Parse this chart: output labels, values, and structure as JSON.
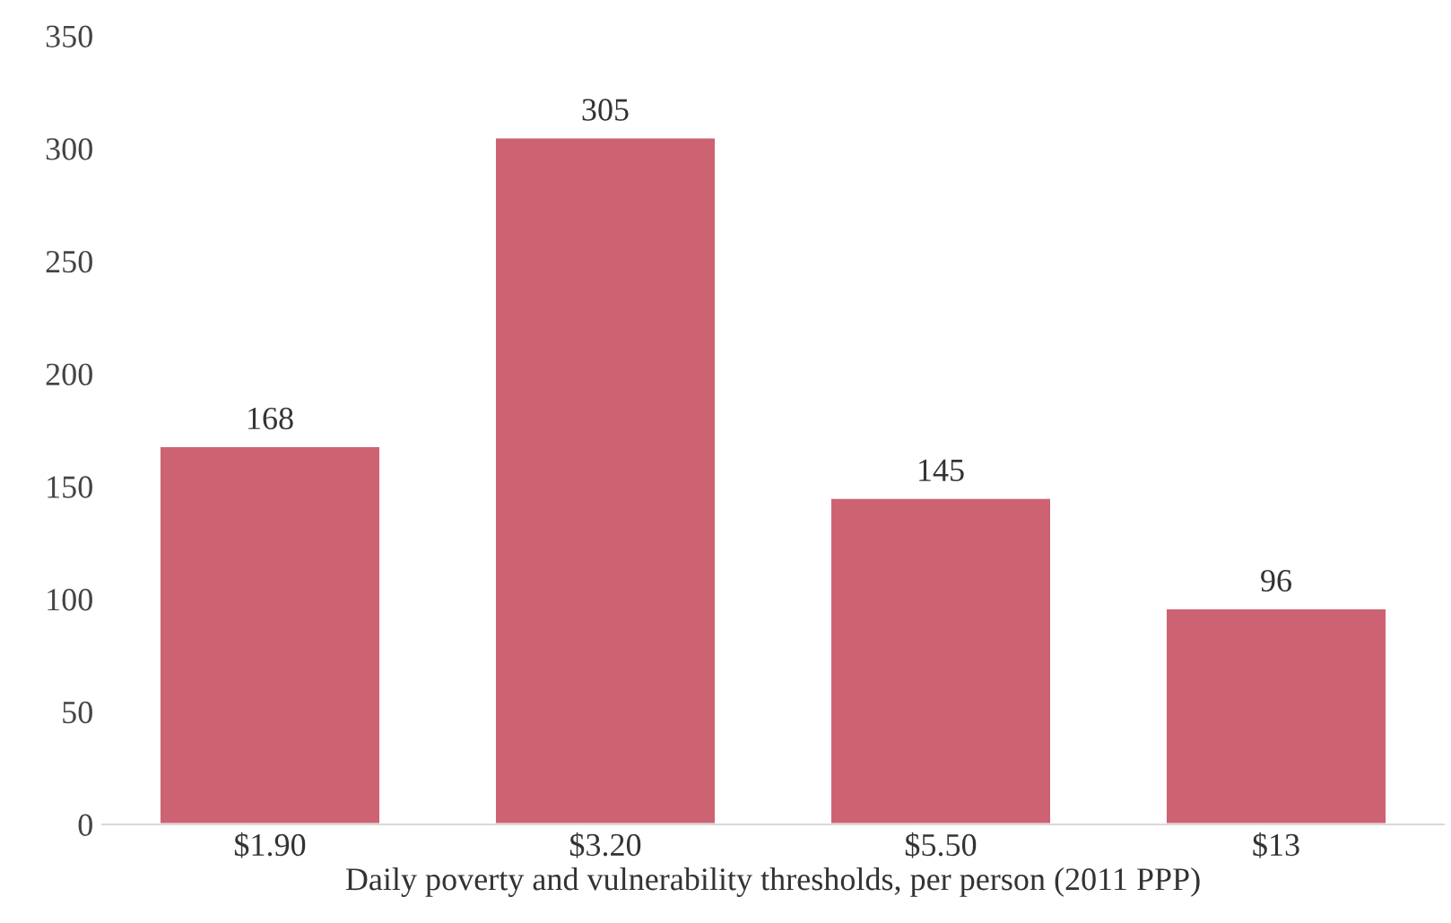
{
  "chart_data": {
    "type": "bar",
    "xlabel": "Daily poverty and vulnerability thresholds, per person (2011 PPP)",
    "categories": [
      "$1.90",
      "$3.20",
      "$5.50",
      "$13"
    ],
    "values": [
      168,
      305,
      145,
      96
    ],
    "color": "#cd6372",
    "ylim": [
      0,
      350
    ],
    "yticks": [
      0,
      50,
      100,
      150,
      200,
      250,
      300,
      350
    ],
    "grid": false,
    "data_labels": true
  }
}
